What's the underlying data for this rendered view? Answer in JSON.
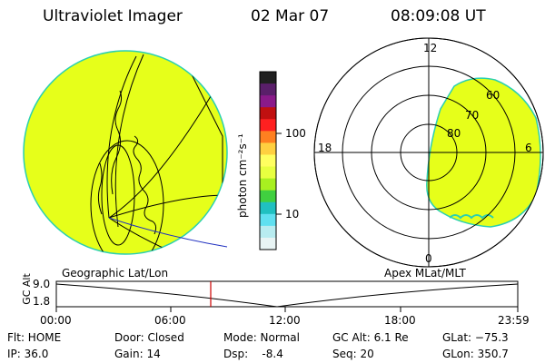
{
  "header": {
    "instrument": "Ultraviolet Imager",
    "date": "02 Mar 07",
    "time": "08:09:08 UT"
  },
  "colorbar": {
    "unit_label": "photon cm⁻²s⁻¹",
    "ticks": [
      "100",
      "10"
    ],
    "colors": [
      "#202020",
      "#5a1f6a",
      "#8a1a8a",
      "#c01010",
      "#ff2020",
      "#ff8020",
      "#ffd040",
      "#ffff60",
      "#e8ff40",
      "#a8f020",
      "#40d040",
      "#20c0c0",
      "#60e0f0",
      "#b8ecf0",
      "#e8f4f4"
    ]
  },
  "left_panel": {
    "label": "Geographic Lat/Lon",
    "fill": "#e6ff1a"
  },
  "right_panel": {
    "label": "Apex MLat/MLT",
    "mlt_labels": {
      "top": "12",
      "left": "18",
      "right": "6",
      "bottom": "0"
    },
    "mlat_labels": [
      "80",
      "70",
      "60"
    ]
  },
  "timeline": {
    "axis_label": "GC Alt",
    "y_top": "9.0",
    "y_bottom": "1.8",
    "ticks": [
      "00:00",
      "06:00",
      "12:00",
      "18:00",
      "23:59"
    ],
    "marker_color": "#cc0000"
  },
  "status": {
    "flt": "Flt: HOME",
    "ip": "IP: 36.0",
    "door": "Door: Closed",
    "gain": "Gain: 14",
    "mode": "Mode: Normal",
    "dsp": "Dsp:    -8.4",
    "gcalt": "GC Alt: 6.1 Re",
    "seq": "Seq: 20",
    "glat": "GLat: −75.3",
    "glon": "GLon: 350.7"
  }
}
